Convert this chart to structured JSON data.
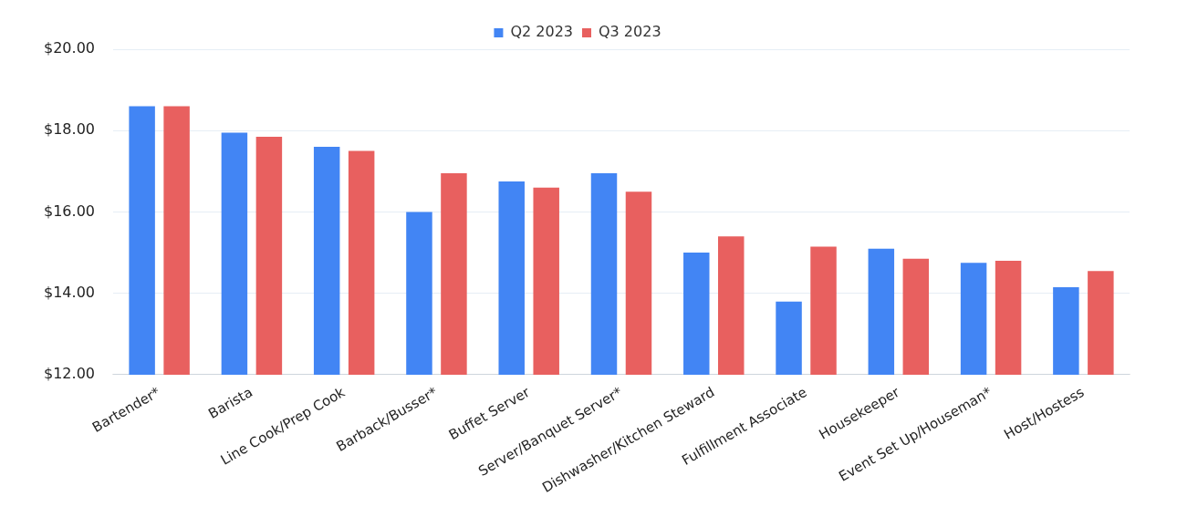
{
  "chart_data": {
    "type": "bar",
    "categories": [
      "Bartender*",
      "Barista",
      "Line Cook/Prep Cook",
      "Barback/Busser*",
      "Buffet Server",
      "Server/Banquet Server*",
      "Dishwasher/Kitchen Steward",
      "Fulfillment Associate",
      "Housekeeper",
      "Event Set Up/Houseman*",
      "Host/Hostess"
    ],
    "series": [
      {
        "name": "Q2 2023",
        "color": "#4285f4",
        "values": [
          18.6,
          17.95,
          17.6,
          16.0,
          16.75,
          16.95,
          15.0,
          13.8,
          15.1,
          14.75,
          14.15
        ]
      },
      {
        "name": "Q3 2023",
        "color": "#e8605f",
        "values": [
          18.6,
          17.85,
          17.5,
          16.95,
          16.6,
          16.5,
          15.4,
          15.15,
          14.85,
          14.8,
          14.55
        ]
      }
    ],
    "ylim": [
      12,
      20
    ],
    "yticks": [
      {
        "value": 12,
        "label": "$12.00"
      },
      {
        "value": 14,
        "label": "$14.00"
      },
      {
        "value": 16,
        "label": "$16.00"
      },
      {
        "value": 18,
        "label": "$18.00"
      },
      {
        "value": 20,
        "label": "$20.00"
      }
    ],
    "grid": "y",
    "legend": "top"
  }
}
